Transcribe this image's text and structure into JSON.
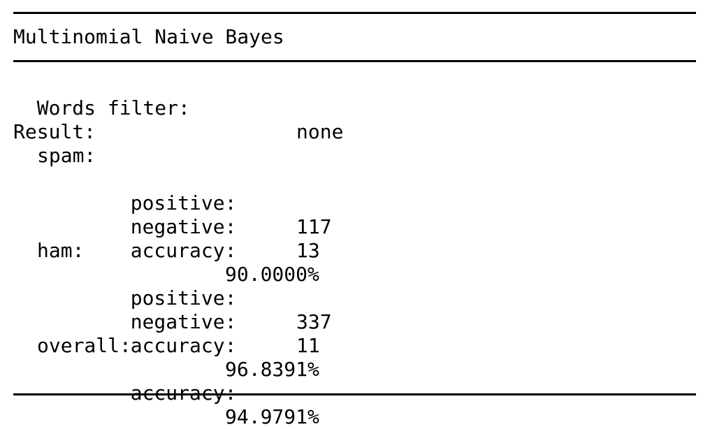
{
  "title": "Multinomial Naive Bayes",
  "filter": {
    "label": "Words filter:",
    "value": "none"
  },
  "result_label": "Result:",
  "spam": {
    "label": "spam:",
    "positive_label": "positive:",
    "positive": "117",
    "negative_label": "negative:",
    "negative": "13",
    "accuracy_label": "accuracy:",
    "accuracy": "90.0000%"
  },
  "ham": {
    "label": "ham:",
    "positive_label": "positive:",
    "positive": "337",
    "negative_label": "negative:",
    "negative": "11",
    "accuracy_label": "accuracy:",
    "accuracy": "96.8391%"
  },
  "overall": {
    "label": "overall:",
    "accuracy_label": "accuracy:",
    "accuracy": "94.9791%"
  }
}
